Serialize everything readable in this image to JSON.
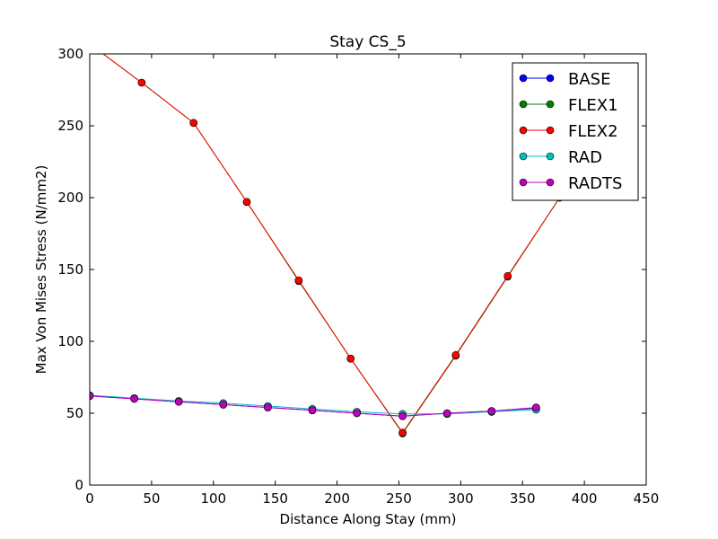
{
  "chart_data": {
    "type": "line",
    "title": "Stay CS_5",
    "xlabel": "Distance Along Stay (mm)",
    "ylabel": "Max Von Mises Stress (N/mm2)",
    "xlim": [
      0,
      450
    ],
    "ylim": [
      0,
      300
    ],
    "xticks": [
      0,
      50,
      100,
      150,
      200,
      250,
      300,
      350,
      400,
      450
    ],
    "yticks": [
      0,
      50,
      100,
      150,
      200,
      250,
      300
    ],
    "grid": false,
    "legend_position": "top-right",
    "series": [
      {
        "name": "BASE",
        "color": "#0000ff",
        "x": [
          0,
          36,
          72,
          108,
          144,
          180,
          216,
          253,
          289,
          325,
          361
        ],
        "y": [
          62,
          60,
          58,
          56,
          54,
          52,
          50,
          48,
          50,
          51.5,
          53.5
        ]
      },
      {
        "name": "FLEX1",
        "color": "#008000",
        "x": [
          0,
          42,
          84,
          127,
          169,
          211,
          253,
          296,
          338,
          380
        ],
        "y": [
          307,
          280,
          252,
          197,
          142,
          88,
          36,
          90,
          145,
          200
        ]
      },
      {
        "name": "FLEX2",
        "color": "#ff0000",
        "x": [
          0,
          42,
          84,
          127,
          169,
          211,
          253,
          296,
          338,
          380
        ],
        "y": [
          307,
          280,
          252,
          197,
          142.5,
          88,
          36.5,
          90.5,
          145.5,
          200
        ]
      },
      {
        "name": "RAD",
        "color": "#00bfbf",
        "x": [
          0,
          36,
          72,
          108,
          144,
          180,
          216,
          253,
          289,
          325,
          361
        ],
        "y": [
          62.5,
          60.5,
          58.5,
          57,
          55,
          53,
          51,
          49.5,
          49.5,
          51,
          52.5
        ]
      },
      {
        "name": "RADTS",
        "color": "#bf00bf",
        "x": [
          0,
          36,
          72,
          108,
          144,
          180,
          216,
          253,
          289,
          325,
          361
        ],
        "y": [
          62,
          60,
          58,
          56,
          54,
          52,
          50,
          48,
          50,
          51.5,
          54
        ]
      }
    ]
  }
}
